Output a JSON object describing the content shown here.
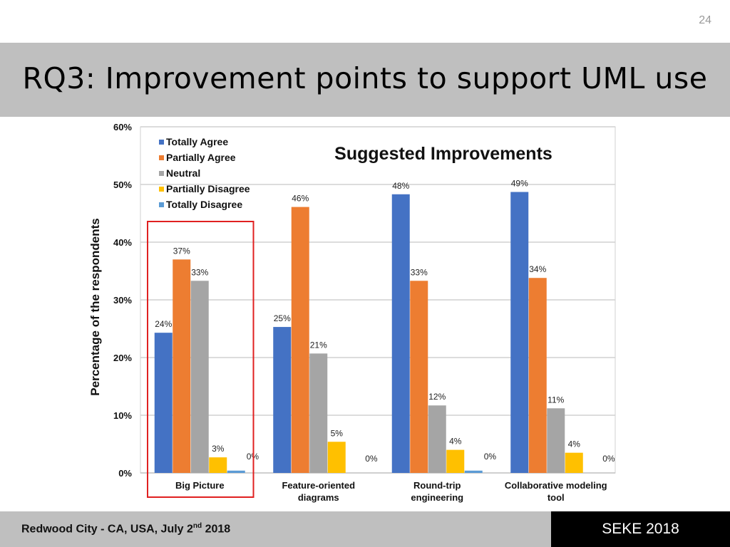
{
  "slide": {
    "page_number": "24",
    "title": "RQ3: Improvement points to support UML use"
  },
  "footer": {
    "location_prefix": "Redwood City - CA, USA, July 2",
    "location_sup": "nd",
    "location_suffix": " 2018",
    "conference": "SEKE 2018"
  },
  "chart_data": {
    "type": "bar",
    "title": "Suggested Improvements",
    "xlabel": "",
    "ylabel": "Percentage of the respondents",
    "ylim": [
      0,
      60
    ],
    "yticks": [
      0,
      10,
      20,
      30,
      40,
      50,
      60
    ],
    "ytick_labels": [
      "0%",
      "10%",
      "20%",
      "30%",
      "40%",
      "50%",
      "60%"
    ],
    "grid": true,
    "legend_position": "top-left",
    "categories": [
      [
        "Big Picture"
      ],
      [
        "Feature-oriented",
        "diagrams"
      ],
      [
        "Round-trip",
        "engineering"
      ],
      [
        "Collaborative modeling",
        "tool"
      ]
    ],
    "series": [
      {
        "name": "Totally Agree",
        "color": "#4472c4",
        "values": [
          24.3,
          25.3,
          48.3,
          48.7
        ],
        "labels": [
          "24%",
          "25%",
          "48%",
          "49%"
        ]
      },
      {
        "name": "Partially Agree",
        "color": "#ed7d31",
        "values": [
          37.0,
          46.1,
          33.3,
          33.8
        ],
        "labels": [
          "37%",
          "46%",
          "33%",
          "34%"
        ]
      },
      {
        "name": "Neutral",
        "color": "#a5a5a5",
        "values": [
          33.3,
          20.7,
          11.7,
          11.2
        ],
        "labels": [
          "33%",
          "21%",
          "12%",
          "11%"
        ]
      },
      {
        "name": "Partially Disagree",
        "color": "#ffc000",
        "values": [
          2.7,
          5.4,
          4.0,
          3.5
        ],
        "labels": [
          "3%",
          "5%",
          "4%",
          "4%"
        ]
      },
      {
        "name": "Totally Disagree",
        "color": "#5b9bd5",
        "values": [
          0.4,
          0.0,
          0.4,
          0.0
        ],
        "labels": [
          "0%",
          "0%",
          "0%",
          "0%"
        ]
      }
    ],
    "highlighted_category": "Big Picture",
    "highlight_color": "#e02020"
  }
}
